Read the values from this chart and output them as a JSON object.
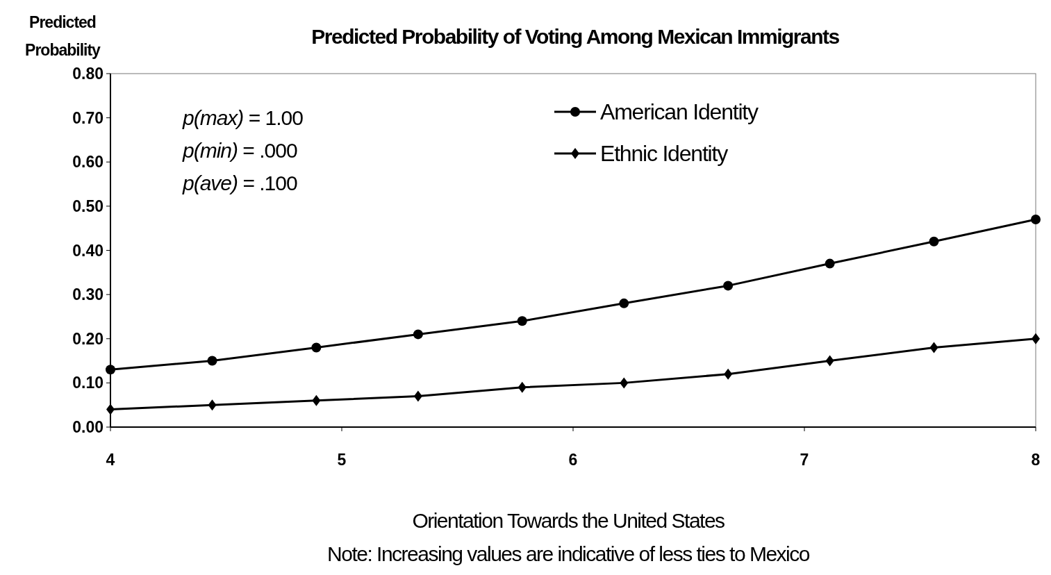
{
  "chart_data": {
    "type": "line",
    "title": "Predicted Probability of Voting Among Mexican Immigrants",
    "ylabel": "Predicted Probability",
    "xlabel": "Orientation Towards the United States",
    "annotations": [
      "p(max) = 1.00",
      "p(min) = .000",
      "p(ave) = .100",
      "Note: Increasing values are indicative of less ties to Mexico"
    ],
    "x": [
      4,
      4.44,
      4.89,
      5.33,
      5.78,
      6.22,
      6.67,
      7.11,
      7.56,
      8
    ],
    "series": [
      {
        "name": "American Identity",
        "color": "#000000",
        "marker": "circle",
        "values": [
          0.13,
          0.15,
          0.18,
          0.21,
          0.24,
          0.28,
          0.32,
          0.37,
          0.42,
          0.47
        ]
      },
      {
        "name": "Ethnic Identity",
        "color": "#000000",
        "marker": "diamond",
        "values": [
          0.04,
          0.05,
          0.06,
          0.07,
          0.09,
          0.1,
          0.12,
          0.15,
          0.18,
          0.2
        ]
      }
    ],
    "xlim": [
      4,
      8
    ],
    "xticks": [
      4,
      5,
      6,
      7,
      8
    ],
    "ylim": [
      0,
      0.8
    ],
    "yticks": [
      {
        "value": 0,
        "label": "0.00"
      },
      {
        "value": 0.1,
        "label": "0.10"
      },
      {
        "value": 0.2,
        "label": "0.20"
      },
      {
        "value": 0.3,
        "label": "0.30"
      },
      {
        "value": 0.4,
        "label": "0.40"
      },
      {
        "value": 0.5,
        "label": "0.50"
      },
      {
        "value": 0.6,
        "label": "0.60"
      },
      {
        "value": 0.7,
        "label": "0.70"
      },
      {
        "value": 0.8,
        "label": "0.80"
      }
    ],
    "legend": "top right",
    "line_style": "solid",
    "grid": false
  }
}
